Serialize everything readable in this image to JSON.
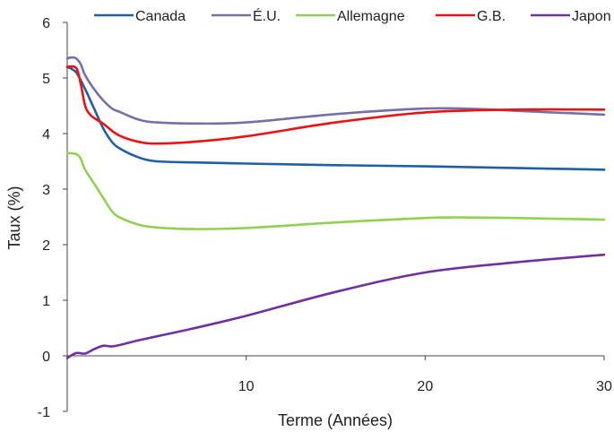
{
  "chart_data": {
    "type": "line",
    "title": "",
    "xlabel": "Terme (Années)",
    "ylabel": "Taux (%)",
    "xlim": [
      0,
      30
    ],
    "ylim": [
      -1,
      6
    ],
    "x_ticks": [
      10,
      20,
      30
    ],
    "y_ticks": [
      -1,
      0,
      1,
      2,
      3,
      4,
      5,
      6
    ],
    "grid": false,
    "legend_position": "top",
    "series": [
      {
        "name": "Canada",
        "color": "#1f5fa8",
        "points": [
          [
            0,
            5.2
          ],
          [
            0.5,
            5.1
          ],
          [
            1,
            4.8
          ],
          [
            1.5,
            4.45
          ],
          [
            2,
            4.1
          ],
          [
            2.5,
            3.85
          ],
          [
            3,
            3.72
          ],
          [
            4,
            3.57
          ],
          [
            5,
            3.5
          ],
          [
            7,
            3.48
          ],
          [
            10,
            3.46
          ],
          [
            15,
            3.43
          ],
          [
            20,
            3.41
          ],
          [
            25,
            3.38
          ],
          [
            30,
            3.35
          ]
        ]
      },
      {
        "name": "É.U.",
        "color": "#7470a8",
        "points": [
          [
            0,
            5.35
          ],
          [
            0.25,
            5.37
          ],
          [
            0.5,
            5.35
          ],
          [
            0.75,
            5.25
          ],
          [
            1,
            5.05
          ],
          [
            1.5,
            4.8
          ],
          [
            2,
            4.6
          ],
          [
            2.5,
            4.45
          ],
          [
            3,
            4.38
          ],
          [
            4,
            4.25
          ],
          [
            5,
            4.2
          ],
          [
            7,
            4.18
          ],
          [
            10,
            4.2
          ],
          [
            15,
            4.35
          ],
          [
            20,
            4.45
          ],
          [
            23,
            4.44
          ],
          [
            25,
            4.41
          ],
          [
            30,
            4.34
          ]
        ]
      },
      {
        "name": "Allemagne",
        "color": "#92d050",
        "points": [
          [
            0,
            3.65
          ],
          [
            0.5,
            3.63
          ],
          [
            0.75,
            3.55
          ],
          [
            1,
            3.35
          ],
          [
            1.5,
            3.1
          ],
          [
            2,
            2.85
          ],
          [
            2.5,
            2.6
          ],
          [
            3,
            2.48
          ],
          [
            4,
            2.36
          ],
          [
            5,
            2.31
          ],
          [
            7,
            2.28
          ],
          [
            10,
            2.3
          ],
          [
            15,
            2.4
          ],
          [
            20,
            2.48
          ],
          [
            22,
            2.49
          ],
          [
            25,
            2.48
          ],
          [
            30,
            2.45
          ]
        ]
      },
      {
        "name": "G.B.",
        "color": "#ee1111",
        "points": [
          [
            0,
            5.2
          ],
          [
            0.5,
            5.18
          ],
          [
            0.75,
            4.9
          ],
          [
            1,
            4.5
          ],
          [
            1.25,
            4.35
          ],
          [
            1.5,
            4.28
          ],
          [
            2,
            4.18
          ],
          [
            2.5,
            4.05
          ],
          [
            3,
            3.95
          ],
          [
            4,
            3.85
          ],
          [
            5,
            3.82
          ],
          [
            7,
            3.85
          ],
          [
            10,
            3.95
          ],
          [
            15,
            4.2
          ],
          [
            20,
            4.38
          ],
          [
            25,
            4.43
          ],
          [
            30,
            4.43
          ]
        ]
      },
      {
        "name": "Japon",
        "color": "#7030a0",
        "points": [
          [
            0,
            -0.04
          ],
          [
            0.5,
            0.05
          ],
          [
            1,
            0.04
          ],
          [
            1.5,
            0.12
          ],
          [
            2,
            0.18
          ],
          [
            2.5,
            0.17
          ],
          [
            3,
            0.2
          ],
          [
            4,
            0.28
          ],
          [
            5,
            0.35
          ],
          [
            7,
            0.49
          ],
          [
            10,
            0.72
          ],
          [
            15,
            1.15
          ],
          [
            20,
            1.5
          ],
          [
            25,
            1.68
          ],
          [
            30,
            1.82
          ]
        ]
      }
    ]
  }
}
